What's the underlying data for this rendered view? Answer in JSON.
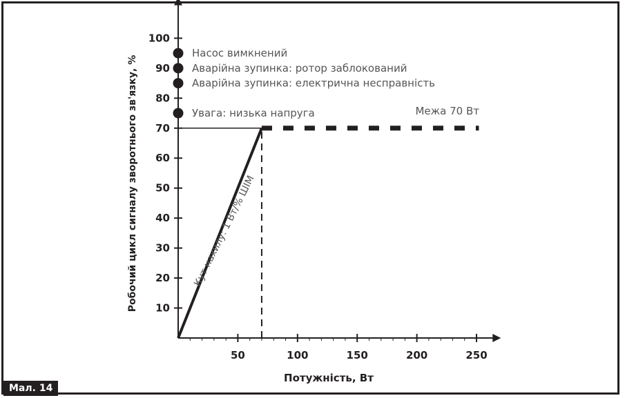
{
  "figure_label": "Мал. 14",
  "colors": {
    "ink": "#231f20",
    "note_text": "#555555",
    "background": "#ffffff"
  },
  "chart_data": {
    "type": "line",
    "title": "",
    "xlabel": "Потужність, Вт",
    "ylabel": "Робочий цикл сигналу зворотнього зв'язку, %",
    "xlim": [
      0,
      260
    ],
    "ylim": [
      0,
      105
    ],
    "x_ticks": [
      50,
      100,
      150,
      200,
      250
    ],
    "x_minor_ticks": [
      10,
      20,
      30,
      40,
      60,
      70,
      80,
      90,
      110,
      120,
      130,
      140,
      160,
      170,
      180,
      190,
      210,
      220,
      230,
      240
    ],
    "y_ticks": [
      10,
      20,
      30,
      40,
      50,
      60,
      70,
      80,
      90,
      100
    ],
    "grid": false,
    "series": [
      {
        "style": "solid-thick",
        "x": [
          0,
          70
        ],
        "y": [
          0,
          70
        ]
      },
      {
        "style": "dashed-thick",
        "x": [
          70,
          252
        ],
        "y": [
          70,
          70
        ]
      }
    ],
    "reference_lines": [
      {
        "orientation": "horizontal",
        "y": 70,
        "x_from": 0,
        "x_to": 70
      },
      {
        "orientation": "vertical",
        "x": 70,
        "y_from": 0,
        "y_to": 70,
        "style": "dashed"
      }
    ],
    "status_points": [
      {
        "y": 95,
        "label": "Насос вимкнений"
      },
      {
        "y": 90,
        "label": "Аварійна зупинка: ротор заблокований"
      },
      {
        "y": 85,
        "label": "Аварійна зупинка: електрична несправність"
      },
      {
        "y": 75,
        "label": "Увага: низька напруга"
      }
    ],
    "annotations": [
      {
        "text": "Межа 70 Вт"
      },
      {
        "text": "Кут нахилу: 1 Вт/% ШІМ"
      }
    ]
  }
}
